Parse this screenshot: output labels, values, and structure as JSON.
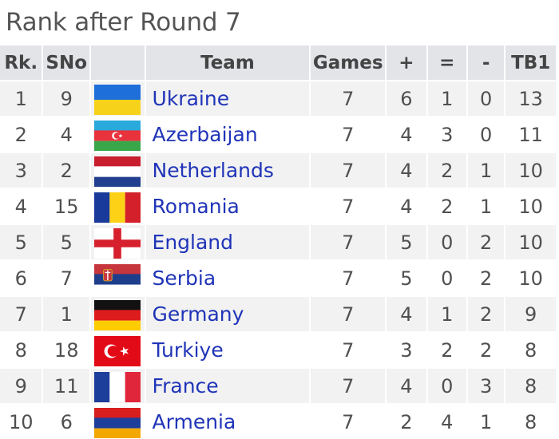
{
  "title": "Rank after Round 7",
  "columns": [
    "Rk.",
    "SNo",
    "",
    "Team",
    "Games",
    "+",
    "=",
    "-",
    "TB1"
  ],
  "rows": [
    {
      "rank": "1",
      "sno": "9",
      "flag": "ukraine-flag-icon",
      "team": "Ukraine",
      "games": "7",
      "plus": "6",
      "eq": "1",
      "minus": "0",
      "tb1": "13"
    },
    {
      "rank": "2",
      "sno": "4",
      "flag": "azerbaijan-flag-icon",
      "team": "Azerbaijan",
      "games": "7",
      "plus": "4",
      "eq": "3",
      "minus": "0",
      "tb1": "11"
    },
    {
      "rank": "3",
      "sno": "2",
      "flag": "netherlands-flag-icon",
      "team": "Netherlands",
      "games": "7",
      "plus": "4",
      "eq": "2",
      "minus": "1",
      "tb1": "10"
    },
    {
      "rank": "4",
      "sno": "15",
      "flag": "romania-flag-icon",
      "team": "Romania",
      "games": "7",
      "plus": "4",
      "eq": "2",
      "minus": "1",
      "tb1": "10"
    },
    {
      "rank": "5",
      "sno": "5",
      "flag": "england-flag-icon",
      "team": "England",
      "games": "7",
      "plus": "5",
      "eq": "0",
      "minus": "2",
      "tb1": "10"
    },
    {
      "rank": "6",
      "sno": "7",
      "flag": "serbia-flag-icon",
      "team": "Serbia",
      "games": "7",
      "plus": "5",
      "eq": "0",
      "minus": "2",
      "tb1": "10"
    },
    {
      "rank": "7",
      "sno": "1",
      "flag": "germany-flag-icon",
      "team": "Germany",
      "games": "7",
      "plus": "4",
      "eq": "1",
      "minus": "2",
      "tb1": "9"
    },
    {
      "rank": "8",
      "sno": "18",
      "flag": "turkiye-flag-icon",
      "team": "Turkiye",
      "games": "7",
      "plus": "3",
      "eq": "2",
      "minus": "2",
      "tb1": "8"
    },
    {
      "rank": "9",
      "sno": "11",
      "flag": "france-flag-icon",
      "team": "France",
      "games": "7",
      "plus": "4",
      "eq": "0",
      "minus": "3",
      "tb1": "8"
    },
    {
      "rank": "10",
      "sno": "6",
      "flag": "armenia-flag-icon",
      "team": "Armenia",
      "games": "7",
      "plus": "2",
      "eq": "4",
      "minus": "1",
      "tb1": "8"
    }
  ],
  "colors": {
    "header_bg": "#e2e4e8",
    "odd_row_bg": "#f2f2f2",
    "link": "#1f34b8",
    "text": "#505050"
  }
}
